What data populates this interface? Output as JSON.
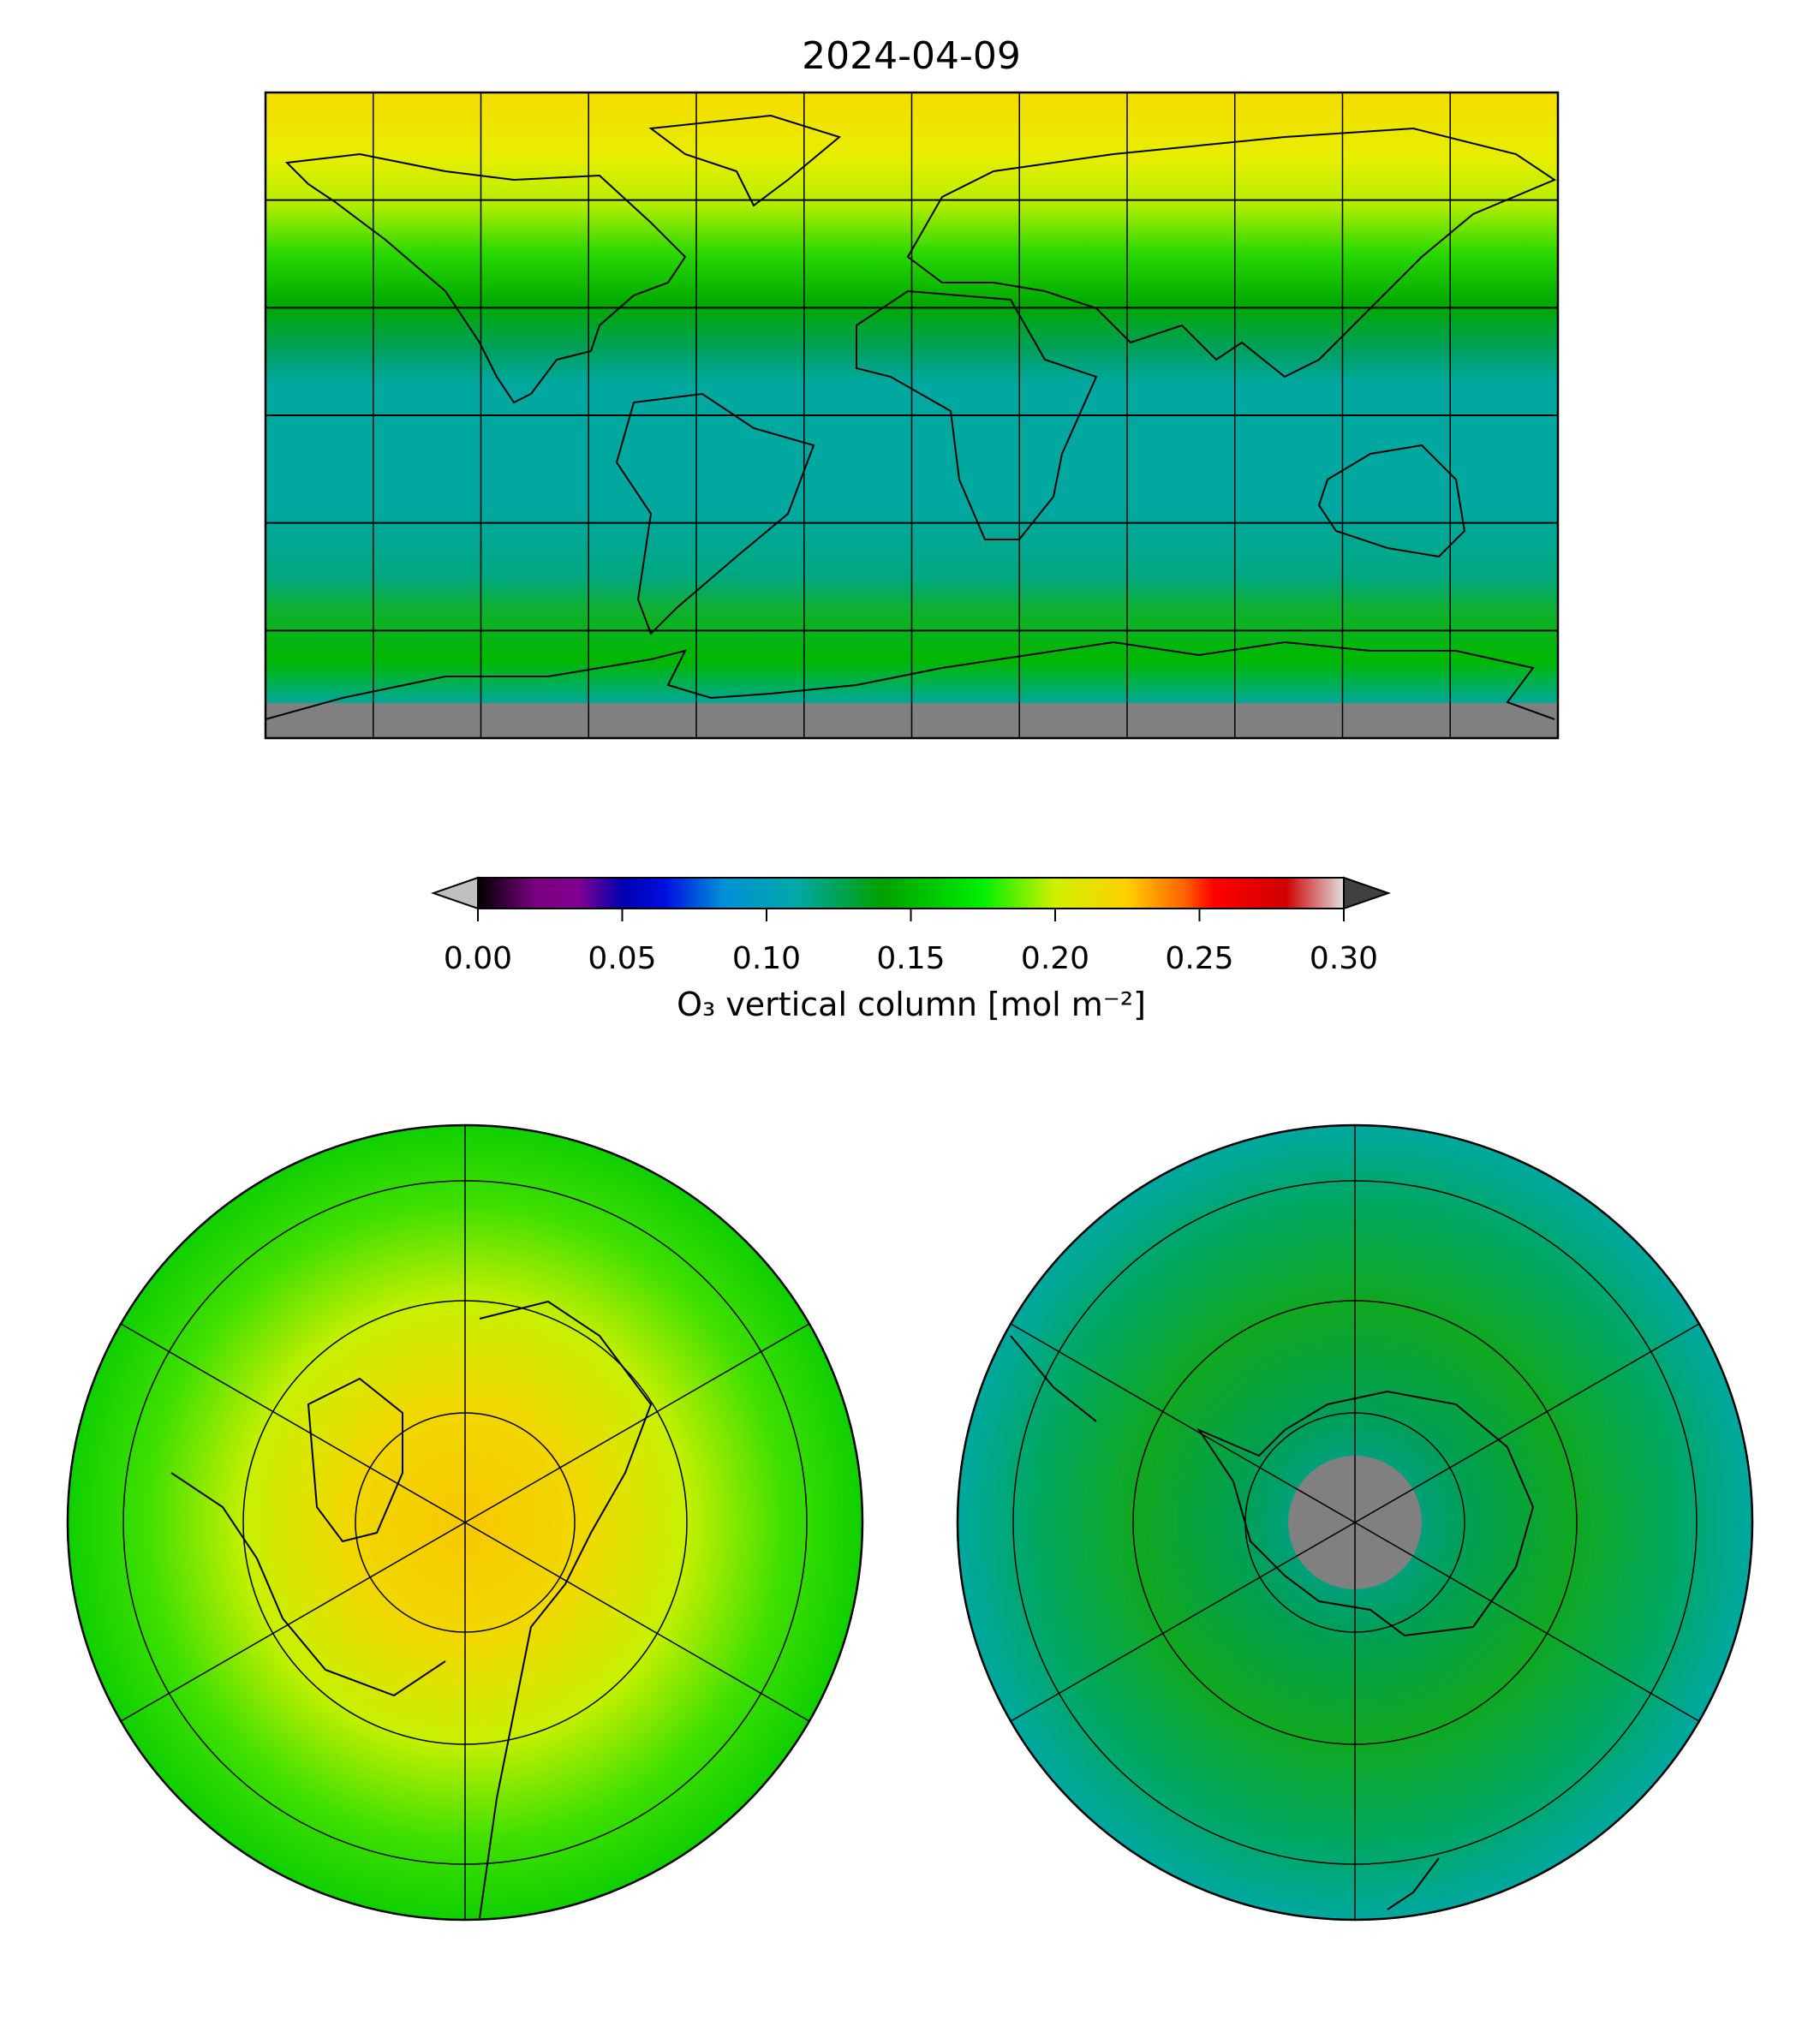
{
  "title": "2024-04-09",
  "colorbar": {
    "label": "O₃ vertical column [mol m⁻²]",
    "ticks": [
      "0.00",
      "0.05",
      "0.10",
      "0.15",
      "0.20",
      "0.25",
      "0.30"
    ],
    "range": [
      0.0,
      0.3
    ],
    "extend": "both",
    "under_color": "#c0c0c0",
    "over_color": "#404040",
    "stops": [
      {
        "v": 0.0,
        "c": "#000000"
      },
      {
        "v": 0.02,
        "c": "#7a0080"
      },
      {
        "v": 0.035,
        "c": "#800090"
      },
      {
        "v": 0.05,
        "c": "#0000b0"
      },
      {
        "v": 0.065,
        "c": "#0010e0"
      },
      {
        "v": 0.085,
        "c": "#0090d8"
      },
      {
        "v": 0.11,
        "c": "#00a8a8"
      },
      {
        "v": 0.14,
        "c": "#00a000"
      },
      {
        "v": 0.175,
        "c": "#00f000"
      },
      {
        "v": 0.2,
        "c": "#d0f000"
      },
      {
        "v": 0.225,
        "c": "#ffd000"
      },
      {
        "v": 0.245,
        "c": "#ff6000"
      },
      {
        "v": 0.255,
        "c": "#ff0000"
      },
      {
        "v": 0.28,
        "c": "#d00000"
      },
      {
        "v": 0.3,
        "c": "#e0e0e0"
      }
    ]
  },
  "colors": {
    "missing": "#808080",
    "grid": "#000000"
  },
  "maps": {
    "global": {
      "projection": "equirectangular",
      "lon_range": [
        -180,
        180
      ],
      "lat_range": [
        -90,
        90
      ],
      "grid_lon_step": 30,
      "grid_lat_step": 30
    },
    "north_polar": {
      "projection": "north-polar"
    },
    "south_polar": {
      "projection": "south-polar"
    }
  }
}
